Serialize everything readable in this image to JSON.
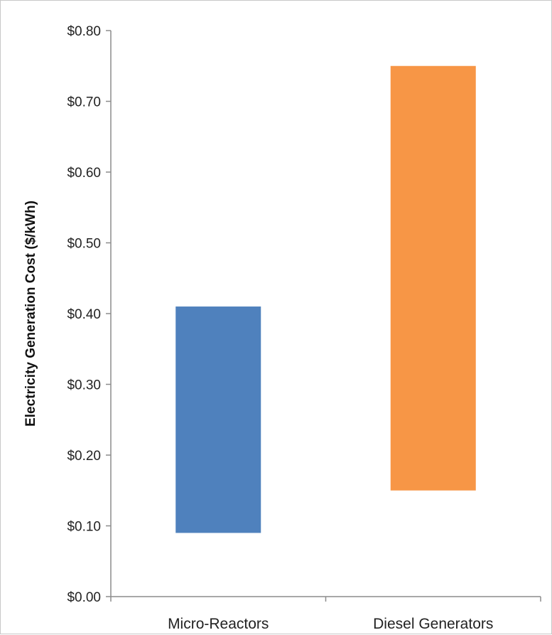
{
  "chart_data": {
    "type": "bar",
    "subtype": "floating-range",
    "title": "",
    "ylabel": "Electricity Generation Cost ($/kWh)",
    "xlabel": "",
    "ylim": [
      0,
      0.8
    ],
    "yticks": [
      0.0,
      0.1,
      0.2,
      0.3,
      0.4,
      0.5,
      0.6,
      0.7,
      0.8
    ],
    "ytick_labels": [
      "$0.00",
      "$0.10",
      "$0.20",
      "$0.30",
      "$0.40",
      "$0.50",
      "$0.60",
      "$0.70",
      "$0.80"
    ],
    "categories": [
      "Micro-Reactors",
      "Diesel Generators"
    ],
    "ranges": [
      {
        "low": 0.09,
        "high": 0.41,
        "color": "#4f81bd"
      },
      {
        "low": 0.15,
        "high": 0.75,
        "color": "#f79646"
      }
    ],
    "grid": false,
    "legend": "none"
  }
}
